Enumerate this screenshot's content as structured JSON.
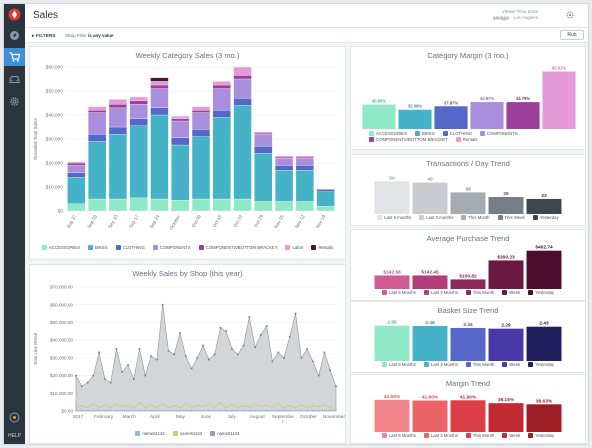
{
  "app": {
    "title": "Sales",
    "timezone_label": "Viewer Time Zone",
    "timezone_value": "America - Los Angeles",
    "updated": "4m ago",
    "help_label": "HELP"
  },
  "sidebar": {
    "icons": [
      "logo-icon",
      "explore-icon",
      "cart-icon",
      "car-icon",
      "gear-icon"
    ]
  },
  "filters": {
    "label": "FILTERS",
    "text_prefix": "Shop Filter",
    "text_value": "is any value",
    "run_label": "Run"
  },
  "colors": {
    "accessories": "#8fe8c6",
    "bikes": "#45b2c8",
    "clothing": "#5567c8",
    "components": "#a98ede",
    "comp_bottom": "#9b3f9a",
    "labor": "#e59ad8",
    "rentals": "#4a1432",
    "shop1": "#8cbbe3",
    "shop2": "#b7d66d",
    "shop3": "#9aa0a8"
  },
  "chart_data": [
    {
      "type": "bar",
      "title": "Weekly Category Sales (3 mo.)",
      "ylabel": "Rounded Total Sales",
      "ylim": [
        0,
        60000
      ],
      "yticks": [
        "$0",
        "$10,000",
        "$20,000",
        "$30,000",
        "$40,000",
        "$50,000",
        "$60,000"
      ],
      "categories": [
        "Aug 27",
        "Sep 03",
        "Sep 10",
        "Sep 17",
        "Sep 24",
        "October",
        "Oct 08",
        "Oct 15",
        "Oct 22",
        "Oct 29",
        "Nov 05",
        "Nov 12",
        "Nov 19"
      ],
      "xtick_labels": [
        "Aug 27",
        "Sep 03",
        "Sep 10",
        "Sep 17",
        "Sep 24",
        "October",
        "Oct 08",
        "Oct 15",
        "Oct 22",
        "Oct 29",
        "Nov 05",
        "Nov 12",
        "Nov 19"
      ],
      "series": [
        {
          "name": "ACCESSORIES",
          "values": [
            3000,
            5000,
            5000,
            5500,
            5000,
            4500,
            5000,
            5000,
            5000,
            4000,
            4000,
            4000,
            2000
          ]
        },
        {
          "name": "BIKES",
          "values": [
            11000,
            24000,
            27000,
            30000,
            35000,
            23000,
            26000,
            34000,
            39000,
            20000,
            13000,
            13000,
            6000
          ]
        },
        {
          "name": "CLOTHING",
          "values": [
            2000,
            3000,
            3000,
            3000,
            3000,
            3000,
            3000,
            3000,
            3000,
            3000,
            2000,
            2000,
            1000
          ]
        },
        {
          "name": "COMPONENTS",
          "values": [
            3000,
            9000,
            8000,
            6000,
            8000,
            7000,
            7000,
            9000,
            8000,
            5000,
            3000,
            3000,
            0
          ]
        },
        {
          "name": "COMPONENTS/BOTTOM BRACKET",
          "values": [
            1000,
            1000,
            1500,
            1500,
            1500,
            1000,
            1000,
            1500,
            1500,
            500,
            500,
            500,
            0
          ]
        },
        {
          "name": "Labor",
          "values": [
            500,
            1500,
            2000,
            1500,
            1500,
            1000,
            1500,
            1500,
            3500,
            500,
            500,
            500,
            0
          ]
        },
        {
          "name": "Rentals",
          "values": [
            0,
            0,
            0,
            0,
            1500,
            0,
            0,
            0,
            0,
            0,
            0,
            0,
            0
          ]
        }
      ]
    },
    {
      "type": "area",
      "title": "Weekly Sales by Shop (this year)",
      "ylabel": "Sale Line Retail",
      "ylim": [
        0,
        70000
      ],
      "yticks": [
        "$0.00",
        "$10,000.00",
        "$20,000.00",
        "$30,000.00",
        "$40,000.00",
        "$50,000.00",
        "$60,000.00",
        "$70,000.00"
      ],
      "xtick_labels": [
        "2017",
        "February",
        "March",
        "April",
        "May",
        "June",
        "July",
        "August",
        "Septembe r",
        "October",
        "November"
      ],
      "series": [
        {
          "name": "name51142",
          "values": [
            300,
            200,
            300,
            200,
            300,
            200,
            300,
            200,
            300,
            300,
            200,
            300,
            200,
            300,
            200,
            300,
            200,
            300,
            200,
            300,
            200,
            300,
            200,
            300,
            200,
            300,
            200,
            300,
            200,
            300,
            200,
            300,
            200,
            300,
            200,
            300,
            200,
            300,
            200,
            300,
            200,
            300,
            200,
            300,
            200,
            300
          ]
        },
        {
          "name": "name51143",
          "values": [
            2000,
            3000,
            2000,
            4000,
            2000,
            3500,
            2000,
            4000,
            2500,
            3000,
            2000,
            4500,
            2000,
            3500,
            2000,
            4000,
            2000,
            3000,
            2000,
            4000,
            2000,
            3000,
            2500,
            4000,
            2000,
            4500,
            2000,
            3500,
            2000,
            3000,
            2000,
            4000,
            2500,
            3000,
            2000,
            4000,
            2000,
            3000,
            2000,
            3500,
            2000,
            3000,
            2500,
            3500,
            2000,
            1000
          ]
        },
        {
          "name": "name51144",
          "values": [
            20000,
            14000,
            16000,
            20000,
            33000,
            18000,
            16000,
            35000,
            22000,
            26000,
            18000,
            35000,
            20000,
            31000,
            29000,
            60000,
            34000,
            32000,
            44000,
            31000,
            24000,
            30000,
            37000,
            29000,
            32000,
            47000,
            45000,
            35000,
            32000,
            37000,
            53000,
            36000,
            43000,
            48000,
            28000,
            33000,
            30000,
            42000,
            55000,
            30000,
            35000,
            28000,
            20000,
            33000,
            23000,
            14000
          ]
        }
      ]
    },
    {
      "type": "bar",
      "title": "Category Margin (3 mo.)",
      "categories": [
        "ACCESSORIES",
        "BIKES",
        "CLOTHING",
        "COMPONENTS",
        "COMPONENTS/BOTTOM BRACKET",
        "Rentals"
      ],
      "values": [
        40.65,
        32.09,
        37.87,
        44.87,
        44.79,
        95.81
      ],
      "data_labels": [
        "40.65%",
        "32.09%",
        "37.87%",
        "44.87%",
        "44.79%",
        "95.81%"
      ],
      "ylim": [
        0,
        100
      ],
      "colors": [
        "#8fe8c6",
        "#45b2c8",
        "#5567c8",
        "#a98ede",
        "#9b3f9a",
        "#e59ad8"
      ]
    },
    {
      "type": "bar",
      "title": "Transactions / Day Trend",
      "categories": [
        "Last 6 months",
        "Last 3 months",
        "This Month",
        "This Week",
        "Yesterday"
      ],
      "values": [
        50,
        48,
        33,
        26,
        23
      ],
      "data_labels": [
        "50",
        "48",
        "33",
        "26",
        "23"
      ],
      "ylim": [
        0,
        55
      ],
      "colors": [
        "#e1e3e6",
        "#c8cbcf",
        "#a6aab1",
        "#787e88",
        "#3e4650"
      ]
    },
    {
      "type": "bar",
      "title": "Average Purchase Trend",
      "categories": [
        "Last 6 Months",
        "Last 3 Months",
        "This Month",
        "Week",
        "Yesterday"
      ],
      "values": [
        142.58,
        142.45,
        100.82,
        300.23,
        402.74
      ],
      "data_labels": [
        "$142.58",
        "$142.45",
        "$100.82",
        "$300.23",
        "$402.74"
      ],
      "ylim": [
        0,
        410
      ],
      "colors": [
        "#d15a97",
        "#b23e79",
        "#8e2a5b",
        "#6a1a42",
        "#4a0d2b"
      ]
    },
    {
      "type": "bar",
      "title": "Basket Size Trend",
      "categories": [
        "Last 6 Months",
        "Last 3 Months",
        "This Month",
        "Week",
        "Yesterday"
      ],
      "values": [
        2.5,
        2.48,
        2.34,
        2.29,
        2.43
      ],
      "data_labels": [
        "2.50",
        "2.48",
        "2.34",
        "2.29",
        "2.43"
      ],
      "ylim": [
        0,
        2.55
      ],
      "colors": [
        "#8fe8c6",
        "#45b2c8",
        "#5567c8",
        "#4838a8",
        "#221f5e"
      ]
    },
    {
      "type": "bar",
      "title": "Margin Trend",
      "categories": [
        "Last 6 Months",
        "Last 3 Months",
        "This Month",
        "Week",
        "Yesterday"
      ],
      "values": [
        42.55,
        41.6,
        41.96,
        38.16,
        36.63
      ],
      "data_labels": [
        "42.55%",
        "41.60%",
        "41.96%",
        "38.16%",
        "36.63%"
      ],
      "ylim": [
        0,
        45
      ],
      "colors": [
        "#f2858a",
        "#ea6468",
        "#dc3e45",
        "#c22a32",
        "#9e1c24"
      ]
    }
  ]
}
